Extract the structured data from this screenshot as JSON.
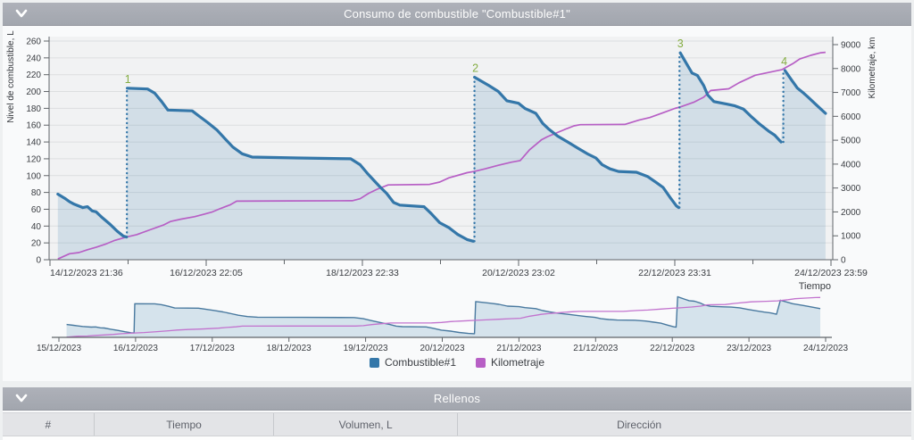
{
  "chart_panel": {
    "title": "Consumo de combustible \"Combustible#1\""
  },
  "rellenos_panel": {
    "title": "Rellenos",
    "columns": [
      "#",
      "Tiempo",
      "Volumen, L",
      "Dirección"
    ]
  },
  "legend": {
    "items": [
      {
        "label": "Combustible#1",
        "color": "#3477a9"
      },
      {
        "label": "Kilometraje",
        "color": "#b75fc5"
      }
    ]
  },
  "colors": {
    "fuel_line": "#3477a9",
    "fuel_fill": "rgba(52,120,170,0.16)",
    "km_line": "#b75fc5",
    "refill_label": "#85ad43",
    "plot_bg": "#f1f2f3",
    "grid": "#dcdee0",
    "axis": "#606468",
    "tick_text": "#3a3d42"
  },
  "chart_data": {
    "type": "line",
    "title": "Consumo de combustible \"Combustible#1\"",
    "x_axis": {
      "label": "Tiempo",
      "note": "x values are fractions of the time axis from 14/12/2023 21:36 (0) to 24/12/2023 23:59 (1)",
      "major_tick_labels": [
        "14/12/2023 21:36",
        "16/12/2023 22:05",
        "18/12/2023 22:33",
        "20/12/2023 23:02",
        "22/12/2023 23:31",
        "24/12/2023 23:59"
      ]
    },
    "y_left": {
      "label": "Nivel de combustible, L",
      "min": 0,
      "max": 260,
      "step": 20
    },
    "y_right": {
      "label": "Kilometraje, km",
      "min": 0,
      "max": 9000,
      "step": 1000
    },
    "grid": true,
    "legend_position": "bottom",
    "fuel_series": {
      "name": "Combustible#1",
      "axis": "left",
      "unit": "L",
      "segments": [
        [
          [
            0.01,
            78
          ],
          [
            0.019,
            73
          ],
          [
            0.025,
            69
          ],
          [
            0.031,
            66
          ],
          [
            0.042,
            62
          ],
          [
            0.048,
            63
          ],
          [
            0.054,
            58
          ],
          [
            0.059,
            57
          ],
          [
            0.067,
            50
          ],
          [
            0.077,
            42
          ],
          [
            0.086,
            34
          ],
          [
            0.094,
            28
          ],
          [
            0.098,
            27
          ]
        ],
        [
          [
            0.099,
            204
          ],
          [
            0.125,
            203
          ],
          [
            0.134,
            198
          ],
          [
            0.143,
            188
          ],
          [
            0.151,
            178
          ],
          [
            0.182,
            177
          ],
          [
            0.189,
            172
          ],
          [
            0.202,
            163
          ],
          [
            0.214,
            154
          ],
          [
            0.225,
            143
          ],
          [
            0.234,
            134
          ],
          [
            0.246,
            126
          ],
          [
            0.259,
            122
          ],
          [
            0.317,
            121
          ],
          [
            0.385,
            120
          ],
          [
            0.397,
            113
          ],
          [
            0.406,
            103
          ],
          [
            0.414,
            95
          ],
          [
            0.422,
            87
          ],
          [
            0.431,
            79
          ],
          [
            0.44,
            68
          ],
          [
            0.448,
            65
          ],
          [
            0.479,
            63
          ],
          [
            0.488,
            55
          ],
          [
            0.499,
            44
          ],
          [
            0.511,
            38
          ],
          [
            0.522,
            30
          ],
          [
            0.534,
            24
          ],
          [
            0.542,
            22
          ]
        ],
        [
          [
            0.5435,
            217
          ],
          [
            0.562,
            207
          ],
          [
            0.574,
            200
          ],
          [
            0.585,
            189
          ],
          [
            0.6,
            186
          ],
          [
            0.608,
            180
          ],
          [
            0.622,
            174
          ],
          [
            0.631,
            162
          ],
          [
            0.639,
            155
          ],
          [
            0.65,
            147
          ],
          [
            0.663,
            140
          ],
          [
            0.677,
            132
          ],
          [
            0.688,
            126
          ],
          [
            0.699,
            121
          ],
          [
            0.707,
            113
          ],
          [
            0.717,
            108
          ],
          [
            0.728,
            105
          ],
          [
            0.751,
            104
          ],
          [
            0.765,
            99
          ],
          [
            0.776,
            92
          ],
          [
            0.785,
            86
          ],
          [
            0.794,
            74
          ],
          [
            0.802,
            64
          ],
          [
            0.805,
            62
          ]
        ],
        [
          [
            0.807,
            246
          ],
          [
            0.817,
            230
          ],
          [
            0.822,
            222
          ],
          [
            0.829,
            219
          ],
          [
            0.837,
            207
          ],
          [
            0.842,
            196
          ],
          [
            0.85,
            188
          ],
          [
            0.867,
            185
          ],
          [
            0.877,
            183
          ],
          [
            0.888,
            179
          ],
          [
            0.897,
            171
          ],
          [
            0.909,
            161
          ],
          [
            0.92,
            153
          ],
          [
            0.928,
            148
          ],
          [
            0.936,
            140
          ]
        ],
        [
          [
            0.941,
            225
          ],
          [
            0.95,
            213
          ],
          [
            0.957,
            204
          ],
          [
            0.965,
            198
          ],
          [
            0.971,
            193
          ],
          [
            0.979,
            186
          ],
          [
            0.986,
            180
          ],
          [
            0.993,
            174
          ]
        ]
      ]
    },
    "refills": [
      {
        "label": "1",
        "x": 0.0985,
        "from": 27,
        "to": 204
      },
      {
        "label": "2",
        "x": 0.5435,
        "from": 22,
        "to": 217
      },
      {
        "label": "3",
        "x": 0.806,
        "from": 62,
        "to": 246
      },
      {
        "label": "4",
        "x": 0.939,
        "from": 140,
        "to": 225
      }
    ],
    "km_series": {
      "name": "Kilometraje",
      "axis": "right",
      "unit": "km",
      "points": [
        [
          0.01,
          30
        ],
        [
          0.025,
          250
        ],
        [
          0.037,
          300
        ],
        [
          0.048,
          420
        ],
        [
          0.059,
          520
        ],
        [
          0.071,
          650
        ],
        [
          0.082,
          800
        ],
        [
          0.098,
          950
        ],
        [
          0.111,
          1050
        ],
        [
          0.128,
          1250
        ],
        [
          0.145,
          1450
        ],
        [
          0.154,
          1600
        ],
        [
          0.168,
          1700
        ],
        [
          0.185,
          1800
        ],
        [
          0.197,
          1900
        ],
        [
          0.208,
          2000
        ],
        [
          0.219,
          2150
        ],
        [
          0.231,
          2300
        ],
        [
          0.239,
          2450
        ],
        [
          0.305,
          2460
        ],
        [
          0.387,
          2470
        ],
        [
          0.397,
          2550
        ],
        [
          0.408,
          2780
        ],
        [
          0.419,
          2950
        ],
        [
          0.433,
          3130
        ],
        [
          0.486,
          3150
        ],
        [
          0.499,
          3250
        ],
        [
          0.511,
          3430
        ],
        [
          0.522,
          3530
        ],
        [
          0.534,
          3640
        ],
        [
          0.544,
          3700
        ],
        [
          0.557,
          3800
        ],
        [
          0.574,
          3950
        ],
        [
          0.591,
          4080
        ],
        [
          0.602,
          4150
        ],
        [
          0.614,
          4600
        ],
        [
          0.625,
          4900
        ],
        [
          0.629,
          5010
        ],
        [
          0.637,
          5150
        ],
        [
          0.648,
          5300
        ],
        [
          0.659,
          5450
        ],
        [
          0.671,
          5600
        ],
        [
          0.679,
          5650
        ],
        [
          0.736,
          5660
        ],
        [
          0.754,
          5840
        ],
        [
          0.768,
          5950
        ],
        [
          0.785,
          6150
        ],
        [
          0.8,
          6330
        ],
        [
          0.808,
          6400
        ],
        [
          0.825,
          6600
        ],
        [
          0.837,
          6800
        ],
        [
          0.846,
          7080
        ],
        [
          0.869,
          7150
        ],
        [
          0.882,
          7400
        ],
        [
          0.903,
          7720
        ],
        [
          0.922,
          7850
        ],
        [
          0.937,
          7950
        ],
        [
          0.951,
          8200
        ],
        [
          0.96,
          8400
        ],
        [
          0.974,
          8550
        ],
        [
          0.987,
          8660
        ],
        [
          0.993,
          8680
        ]
      ]
    },
    "overview": {
      "x_tick_labels": [
        "15/12/2023",
        "16/12/2023",
        "17/12/2023",
        "18/12/2023",
        "19/12/2023",
        "20/12/2023",
        "21/12/2023",
        "21/12/2023",
        "22/12/2023",
        "23/12/2023",
        "24/12/2023"
      ]
    }
  }
}
